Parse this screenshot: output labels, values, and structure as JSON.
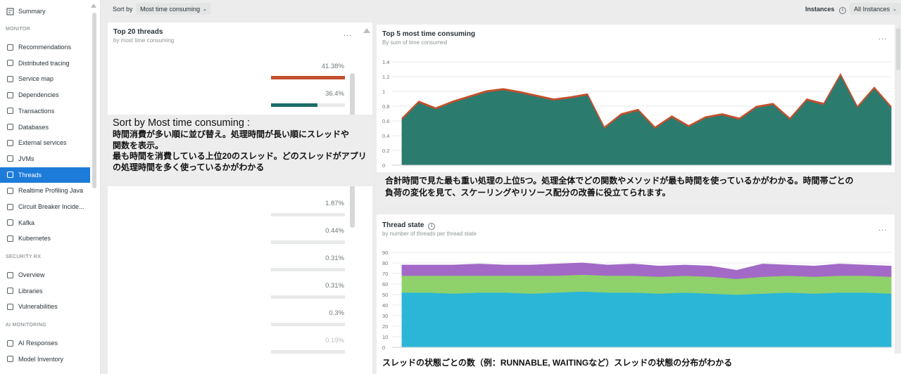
{
  "sidebar": {
    "summary": "Summary",
    "monitor_head": "MONITOR",
    "items": [
      "Recommendations",
      "Distributed tracing",
      "Service map",
      "Dependencies",
      "Transactions",
      "Databases",
      "External services",
      "JVMs",
      "Threads",
      "Realtime Profiling Java",
      "Circuit Breaker Incide...",
      "Kafka",
      "Kubernetes"
    ],
    "security_head": "SECURITY RX",
    "security_items": [
      "Overview",
      "Libraries",
      "Vulnerabilities"
    ],
    "ai_head": "AI MONITORING",
    "ai_items": [
      "AI Responses",
      "Model Inventory"
    ],
    "active_item": "Threads",
    "accent": "#1d7bd9"
  },
  "topbar": {
    "sort_label": "Sort by",
    "sort_value": "Most time consuming",
    "instances_label": "Instances",
    "instances_value": "All Instances"
  },
  "threads_panel": {
    "title": "Top 20 threads",
    "subtitle": "by most time consuming",
    "menu": "...",
    "rows": [
      {
        "pct": "41.38%",
        "fill": 1.0,
        "color": "#c4502e"
      },
      {
        "pct": "36.4%",
        "fill": 0.63,
        "color": "#1b6c68"
      },
      {
        "pct": "1.87%",
        "fill": 0,
        "color": "#1b6c68"
      },
      {
        "pct": "0.44%",
        "fill": 0,
        "color": "#1b6c68"
      },
      {
        "pct": "0.31%",
        "fill": 0,
        "color": "#1b6c68"
      },
      {
        "pct": "0.31%",
        "fill": 0,
        "color": "#1b6c68"
      },
      {
        "pct": "0.3%",
        "fill": 0,
        "color": "#1b6c68"
      },
      {
        "pct": "0.19%",
        "fill": 0,
        "color": "#1b6c68"
      }
    ]
  },
  "top5_panel": {
    "title": "Top 5 most time consuming",
    "subtitle": "By sum of time consumed",
    "menu": "..."
  },
  "state_panel": {
    "title": "Thread state",
    "subtitle": "by number of threads per thread state",
    "menu": "..."
  },
  "callouts": {
    "c1_heading": "Sort by Most time consuming :",
    "c1_line1": "時間消費が多い順に並び替え。処理時間が長い順にスレッドや",
    "c1_line2": "関数を表示。",
    "c1_line3": "最も時間を消費している上位20のスレッド。どのスレッドがアプリ",
    "c1_line4": "の処理時間を多く使っているかがわかる",
    "c2_line1": "合計時間で見た最も重い処理の上位5つ。処理全体でどの関数やメソッドが最も時間を使っているかがわかる。時間帯ごとの",
    "c2_line2": "負荷の変化を見て、スケーリングやリソース配分の改善に役立てられます。",
    "c3": "スレッドの状態ごとの数（例：RUNNABLE, WAITINGなど）スレッドの状態の分布がわかる"
  },
  "chart_data": [
    {
      "type": "area",
      "title": "Top 5 most time consuming",
      "ylim": [
        0,
        1.4
      ],
      "yticks": [
        "0",
        "0.2",
        "0.4",
        "0.6",
        "0.8",
        "1",
        "1.2",
        "1.4"
      ],
      "grid": true,
      "series": [
        {
          "color": "#2c7b6f",
          "values": [
            0.62,
            0.85,
            0.76,
            0.85,
            0.92,
            0.99,
            1.02,
            0.98,
            0.93,
            0.88,
            0.91,
            0.95,
            0.5,
            0.68,
            0.74,
            0.5,
            0.65,
            0.52,
            0.64,
            0.68,
            0.62,
            0.78,
            0.82,
            0.62,
            0.88,
            0.82,
            1.22,
            0.78,
            1.04,
            0.78
          ]
        },
        {
          "color": "#c4502e",
          "values": [
            0.02,
            0.02,
            0.02,
            0.02,
            0.02,
            0.02,
            0.02,
            0.02,
            0.02,
            0.02,
            0.02,
            0.02,
            0.02,
            0.02,
            0.02,
            0.02,
            0.02,
            0.02,
            0.02,
            0.02,
            0.02,
            0.02,
            0.02,
            0.02,
            0.02,
            0.02,
            0.02,
            0.02,
            0.02,
            0.02
          ]
        }
      ]
    },
    {
      "type": "area",
      "title": "Thread state",
      "ylim": [
        0,
        90
      ],
      "yticks": [
        "0",
        "10",
        "20",
        "30",
        "40",
        "50",
        "60",
        "70",
        "80",
        "90"
      ],
      "grid": true,
      "series": [
        {
          "color": "#2bb6d8",
          "values": [
            52,
            52,
            51,
            52,
            52,
            51,
            52,
            53,
            52,
            52,
            51,
            52,
            51,
            50,
            51,
            52,
            51,
            52,
            52,
            51
          ]
        },
        {
          "color": "#8fd16a",
          "values": [
            16,
            16,
            17,
            16,
            16,
            17,
            16,
            16,
            16,
            16,
            16,
            16,
            16,
            15,
            16,
            16,
            16,
            16,
            16,
            16
          ]
        },
        {
          "color": "#a269c7",
          "values": [
            10,
            10,
            10,
            11,
            10,
            10,
            11,
            11,
            10,
            11,
            10,
            10,
            10,
            8,
            12,
            10,
            10,
            11,
            10,
            10
          ]
        }
      ]
    }
  ]
}
